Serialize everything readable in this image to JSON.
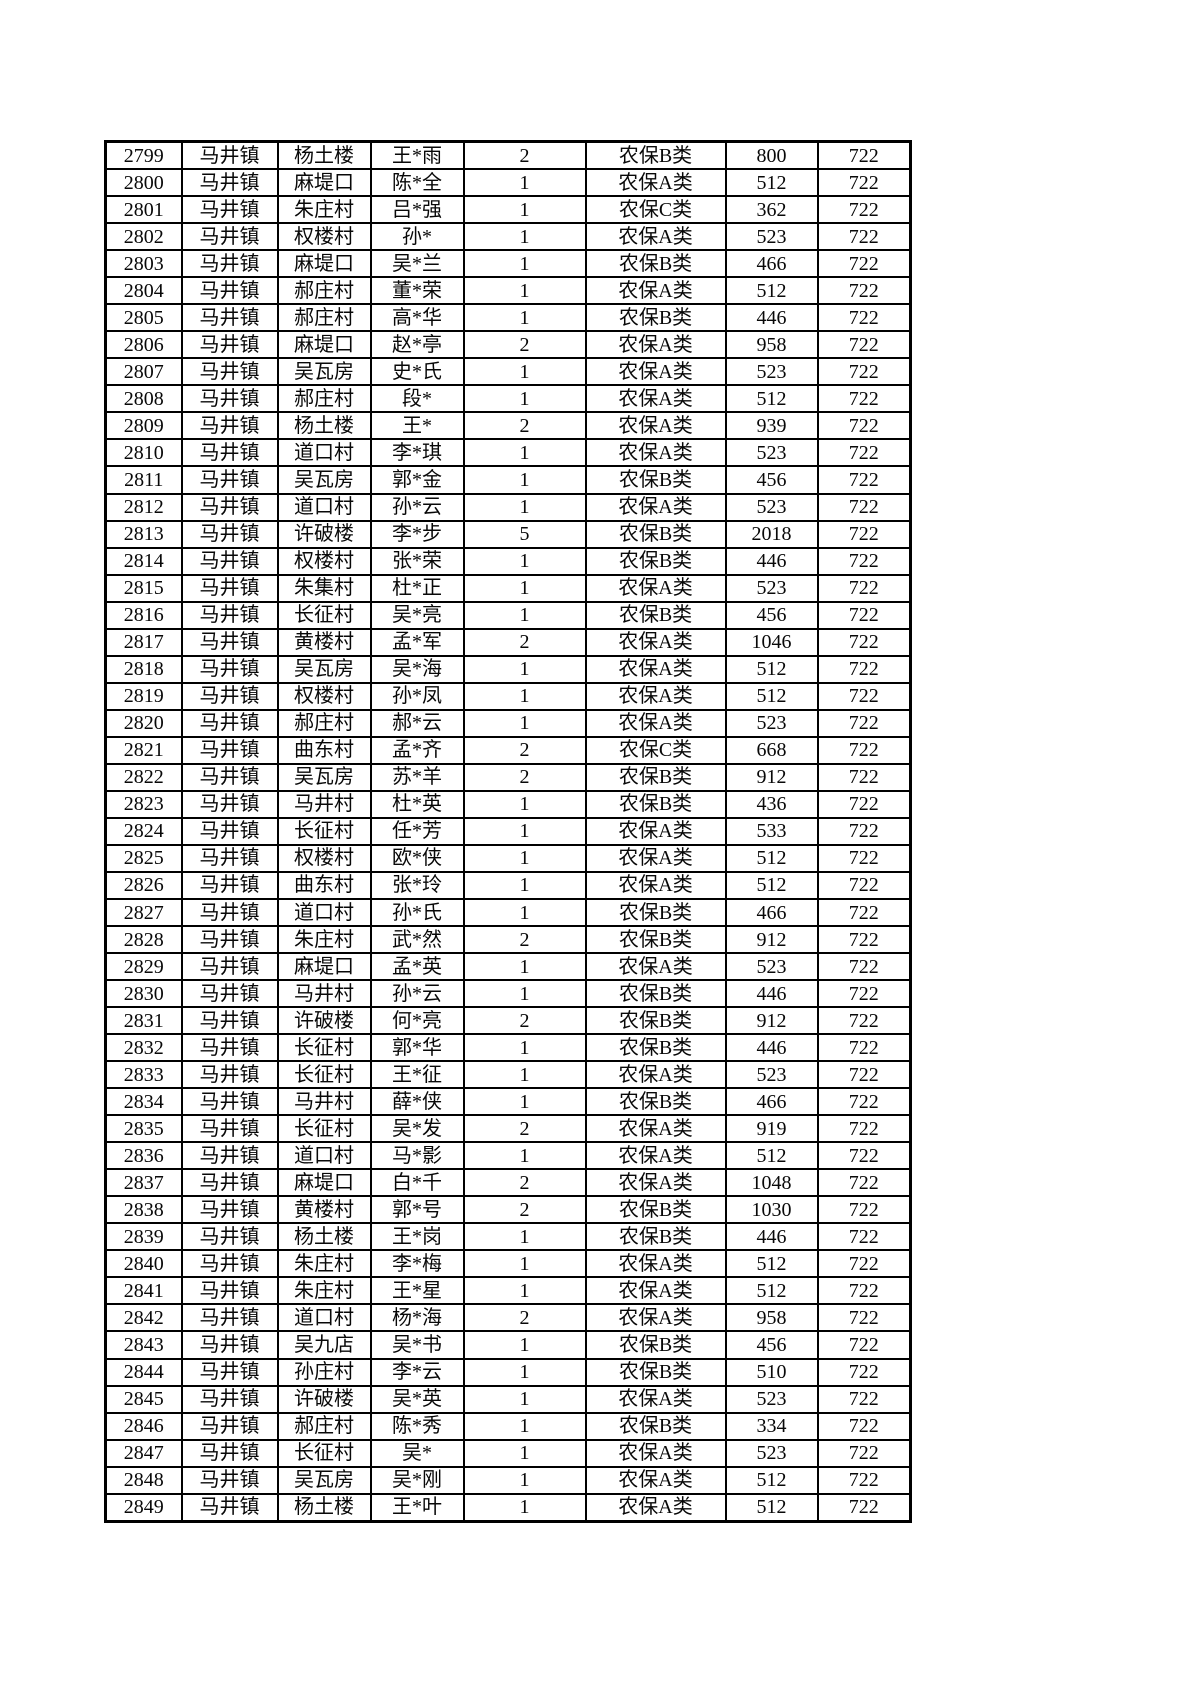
{
  "table": {
    "rows": [
      [
        "2799",
        "马井镇",
        "杨土楼",
        "王*雨",
        "2",
        "农保B类",
        "800",
        "722"
      ],
      [
        "2800",
        "马井镇",
        "麻堤口",
        "陈*全",
        "1",
        "农保A类",
        "512",
        "722"
      ],
      [
        "2801",
        "马井镇",
        "朱庄村",
        "吕*强",
        "1",
        "农保C类",
        "362",
        "722"
      ],
      [
        "2802",
        "马井镇",
        "权楼村",
        "孙*",
        "1",
        "农保A类",
        "523",
        "722"
      ],
      [
        "2803",
        "马井镇",
        "麻堤口",
        "吴*兰",
        "1",
        "农保B类",
        "466",
        "722"
      ],
      [
        "2804",
        "马井镇",
        "郝庄村",
        "董*荣",
        "1",
        "农保A类",
        "512",
        "722"
      ],
      [
        "2805",
        "马井镇",
        "郝庄村",
        "高*华",
        "1",
        "农保B类",
        "446",
        "722"
      ],
      [
        "2806",
        "马井镇",
        "麻堤口",
        "赵*亭",
        "2",
        "农保A类",
        "958",
        "722"
      ],
      [
        "2807",
        "马井镇",
        "吴瓦房",
        "史*氏",
        "1",
        "农保A类",
        "523",
        "722"
      ],
      [
        "2808",
        "马井镇",
        "郝庄村",
        "段*",
        "1",
        "农保A类",
        "512",
        "722"
      ],
      [
        "2809",
        "马井镇",
        "杨土楼",
        "王*",
        "2",
        "农保A类",
        "939",
        "722"
      ],
      [
        "2810",
        "马井镇",
        "道口村",
        "李*琪",
        "1",
        "农保A类",
        "523",
        "722"
      ],
      [
        "2811",
        "马井镇",
        "吴瓦房",
        "郭*金",
        "1",
        "农保B类",
        "456",
        "722"
      ],
      [
        "2812",
        "马井镇",
        "道口村",
        "孙*云",
        "1",
        "农保A类",
        "523",
        "722"
      ],
      [
        "2813",
        "马井镇",
        "许破楼",
        "李*步",
        "5",
        "农保B类",
        "2018",
        "722"
      ],
      [
        "2814",
        "马井镇",
        "权楼村",
        "张*荣",
        "1",
        "农保B类",
        "446",
        "722"
      ],
      [
        "2815",
        "马井镇",
        "朱集村",
        "杜*正",
        "1",
        "农保A类",
        "523",
        "722"
      ],
      [
        "2816",
        "马井镇",
        "长征村",
        "吴*亮",
        "1",
        "农保B类",
        "456",
        "722"
      ],
      [
        "2817",
        "马井镇",
        "黄楼村",
        "孟*军",
        "2",
        "农保A类",
        "1046",
        "722"
      ],
      [
        "2818",
        "马井镇",
        "吴瓦房",
        "吴*海",
        "1",
        "农保A类",
        "512",
        "722"
      ],
      [
        "2819",
        "马井镇",
        "权楼村",
        "孙*凤",
        "1",
        "农保A类",
        "512",
        "722"
      ],
      [
        "2820",
        "马井镇",
        "郝庄村",
        "郝*云",
        "1",
        "农保A类",
        "523",
        "722"
      ],
      [
        "2821",
        "马井镇",
        "曲东村",
        "孟*齐",
        "2",
        "农保C类",
        "668",
        "722"
      ],
      [
        "2822",
        "马井镇",
        "吴瓦房",
        "苏*羊",
        "2",
        "农保B类",
        "912",
        "722"
      ],
      [
        "2823",
        "马井镇",
        "马井村",
        "杜*英",
        "1",
        "农保B类",
        "436",
        "722"
      ],
      [
        "2824",
        "马井镇",
        "长征村",
        "任*芳",
        "1",
        "农保A类",
        "533",
        "722"
      ],
      [
        "2825",
        "马井镇",
        "权楼村",
        "欧*侠",
        "1",
        "农保A类",
        "512",
        "722"
      ],
      [
        "2826",
        "马井镇",
        "曲东村",
        "张*玲",
        "1",
        "农保A类",
        "512",
        "722"
      ],
      [
        "2827",
        "马井镇",
        "道口村",
        "孙*氏",
        "1",
        "农保B类",
        "466",
        "722"
      ],
      [
        "2828",
        "马井镇",
        "朱庄村",
        "武*然",
        "2",
        "农保B类",
        "912",
        "722"
      ],
      [
        "2829",
        "马井镇",
        "麻堤口",
        "孟*英",
        "1",
        "农保A类",
        "523",
        "722"
      ],
      [
        "2830",
        "马井镇",
        "马井村",
        "孙*云",
        "1",
        "农保B类",
        "446",
        "722"
      ],
      [
        "2831",
        "马井镇",
        "许破楼",
        "何*亮",
        "2",
        "农保B类",
        "912",
        "722"
      ],
      [
        "2832",
        "马井镇",
        "长征村",
        "郭*华",
        "1",
        "农保B类",
        "446",
        "722"
      ],
      [
        "2833",
        "马井镇",
        "长征村",
        "王*征",
        "1",
        "农保A类",
        "523",
        "722"
      ],
      [
        "2834",
        "马井镇",
        "马井村",
        "薛*侠",
        "1",
        "农保B类",
        "466",
        "722"
      ],
      [
        "2835",
        "马井镇",
        "长征村",
        "吴*发",
        "2",
        "农保A类",
        "919",
        "722"
      ],
      [
        "2836",
        "马井镇",
        "道口村",
        "马*影",
        "1",
        "农保A类",
        "512",
        "722"
      ],
      [
        "2837",
        "马井镇",
        "麻堤口",
        "白*千",
        "2",
        "农保A类",
        "1048",
        "722"
      ],
      [
        "2838",
        "马井镇",
        "黄楼村",
        "郭*号",
        "2",
        "农保B类",
        "1030",
        "722"
      ],
      [
        "2839",
        "马井镇",
        "杨土楼",
        "王*岗",
        "1",
        "农保B类",
        "446",
        "722"
      ],
      [
        "2840",
        "马井镇",
        "朱庄村",
        "李*梅",
        "1",
        "农保A类",
        "512",
        "722"
      ],
      [
        "2841",
        "马井镇",
        "朱庄村",
        "王*星",
        "1",
        "农保A类",
        "512",
        "722"
      ],
      [
        "2842",
        "马井镇",
        "道口村",
        "杨*海",
        "2",
        "农保A类",
        "958",
        "722"
      ],
      [
        "2843",
        "马井镇",
        "吴九店",
        "吴*书",
        "1",
        "农保B类",
        "456",
        "722"
      ],
      [
        "2844",
        "马井镇",
        "孙庄村",
        "李*云",
        "1",
        "农保B类",
        "510",
        "722"
      ],
      [
        "2845",
        "马井镇",
        "许破楼",
        "吴*英",
        "1",
        "农保A类",
        "523",
        "722"
      ],
      [
        "2846",
        "马井镇",
        "郝庄村",
        "陈*秀",
        "1",
        "农保B类",
        "334",
        "722"
      ],
      [
        "2847",
        "马井镇",
        "长征村",
        "吴*",
        "1",
        "农保A类",
        "523",
        "722"
      ],
      [
        "2848",
        "马井镇",
        "吴瓦房",
        "吴*刚",
        "1",
        "农保A类",
        "512",
        "722"
      ],
      [
        "2849",
        "马井镇",
        "杨土楼",
        "王*叶",
        "1",
        "农保A类",
        "512",
        "722"
      ]
    ]
  }
}
